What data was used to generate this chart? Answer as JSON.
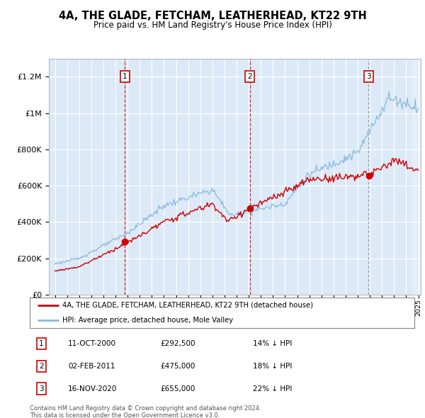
{
  "title": "4A, THE GLADE, FETCHAM, LEATHERHEAD, KT22 9TH",
  "subtitle": "Price paid vs. HM Land Registry's House Price Index (HPI)",
  "legend_red": "4A, THE GLADE, FETCHAM, LEATHERHEAD, KT22 9TH (detached house)",
  "legend_blue": "HPI: Average price, detached house, Mole Valley",
  "footer1": "Contains HM Land Registry data © Crown copyright and database right 2024.",
  "footer2": "This data is licensed under the Open Government Licence v3.0.",
  "transactions": [
    {
      "num": 1,
      "date": "11-OCT-2000",
      "price": 292500,
      "pct": "14% ↓ HPI",
      "x_year": 2000.78,
      "vline_style": "red_dash"
    },
    {
      "num": 2,
      "date": "02-FEB-2011",
      "price": 475000,
      "pct": "18% ↓ HPI",
      "x_year": 2011.09,
      "vline_style": "red_dash"
    },
    {
      "num": 3,
      "date": "16-NOV-2020",
      "price": 655000,
      "pct": "22% ↓ HPI",
      "x_year": 2020.88,
      "vline_style": "grey_dot"
    }
  ],
  "ylim": [
    0,
    1300000
  ],
  "xlim_start": 1994.5,
  "xlim_end": 2025.2,
  "background_color": "#dce9f7",
  "red_color": "#cc0000",
  "blue_color": "#88bbdd",
  "yticks": [
    0,
    200000,
    400000,
    600000,
    800000,
    1000000,
    1200000
  ]
}
